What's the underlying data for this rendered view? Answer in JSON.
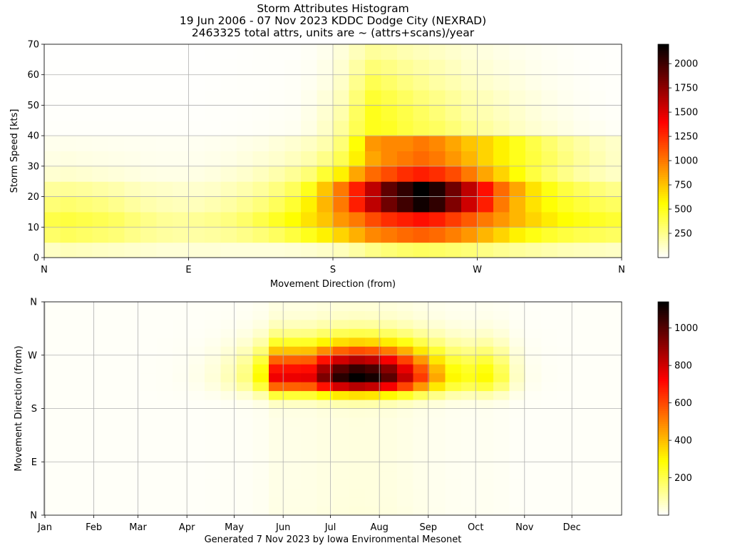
{
  "header": {
    "title": "Storm Attributes Histogram",
    "subtitle": "19 Jun 2006 - 07 Nov 2023 KDDC Dodge City (NEXRAD)",
    "note": "2463325 total attrs, units are ~ (attrs+scans)/year"
  },
  "footer": {
    "text": "Generated 7 Nov 2023 by Iowa Environmental Mesonet"
  },
  "chart_data": [
    {
      "type": "heatmap",
      "xlabel": "Movement Direction (from)",
      "ylabel": "Storm Speed [kts]",
      "x_ticks": [
        "N",
        "E",
        "S",
        "W",
        "N"
      ],
      "x_range": [
        0,
        360
      ],
      "y_ticks": [
        0,
        10,
        20,
        30,
        40,
        50,
        60,
        70
      ],
      "ylim": [
        0,
        70
      ],
      "bins": {
        "x_bins": 36,
        "x_step_deg": 10,
        "y_bins": 14,
        "y_step_kts": 5
      },
      "colorbar": {
        "ticks": [
          250,
          500,
          750,
          1000,
          1250,
          1500,
          1750,
          2000
        ],
        "min": 0,
        "max": 2200,
        "colormap": "hot_r"
      },
      "grid": true,
      "values": [
        [
          130,
          150,
          140,
          130,
          120,
          110,
          100,
          90,
          90,
          90,
          90,
          80,
          80,
          80,
          80,
          90,
          100,
          120,
          150,
          200,
          260,
          300,
          330,
          350,
          340,
          320,
          300,
          270,
          240,
          220,
          200,
          180,
          160,
          150,
          140,
          130
        ],
        [
          330,
          360,
          340,
          320,
          300,
          260,
          230,
          210,
          200,
          200,
          210,
          230,
          260,
          300,
          350,
          420,
          500,
          600,
          700,
          820,
          950,
          1000,
          1050,
          1080,
          1050,
          980,
          900,
          800,
          700,
          600,
          520,
          460,
          420,
          390,
          370,
          350
        ],
        [
          400,
          420,
          400,
          380,
          350,
          300,
          260,
          230,
          220,
          230,
          250,
          280,
          330,
          400,
          480,
          560,
          650,
          750,
          900,
          1000,
          1150,
          1250,
          1300,
          1350,
          1300,
          1200,
          1100,
          1000,
          900,
          800,
          700,
          620,
          560,
          520,
          480,
          450
        ],
        [
          300,
          320,
          300,
          280,
          250,
          210,
          180,
          160,
          150,
          150,
          170,
          200,
          240,
          290,
          360,
          450,
          600,
          800,
          1000,
          1300,
          1600,
          1850,
          2000,
          2150,
          2050,
          1800,
          1550,
          1300,
          1000,
          800,
          650,
          550,
          480,
          430,
          380,
          350
        ],
        [
          220,
          230,
          220,
          200,
          180,
          150,
          130,
          120,
          110,
          110,
          120,
          150,
          180,
          220,
          280,
          360,
          500,
          750,
          1000,
          1300,
          1600,
          1900,
          2050,
          2200,
          2100,
          1850,
          1600,
          1350,
          1050,
          850,
          650,
          520,
          420,
          360,
          300,
          260
        ],
        [
          100,
          110,
          100,
          90,
          80,
          70,
          60,
          55,
          55,
          60,
          70,
          90,
          110,
          140,
          180,
          230,
          300,
          450,
          600,
          850,
          1050,
          1150,
          1250,
          1300,
          1250,
          1150,
          1000,
          850,
          700,
          550,
          420,
          330,
          260,
          200,
          160,
          130
        ],
        [
          60,
          65,
          60,
          55,
          50,
          45,
          40,
          38,
          38,
          40,
          45,
          55,
          70,
          90,
          110,
          140,
          180,
          260,
          380,
          600,
          850,
          950,
          1000,
          1050,
          1000,
          900,
          800,
          700,
          600,
          500,
          420,
          350,
          280,
          220,
          170,
          130
        ],
        [
          40,
          42,
          40,
          38,
          35,
          32,
          30,
          28,
          28,
          30,
          35,
          40,
          50,
          60,
          80,
          100,
          130,
          180,
          300,
          550,
          900,
          950,
          950,
          1000,
          950,
          850,
          750,
          700,
          600,
          500,
          400,
          320,
          250,
          200,
          150,
          120
        ],
        [
          10,
          10,
          10,
          10,
          10,
          10,
          10,
          10,
          10,
          10,
          12,
          14,
          16,
          20,
          25,
          30,
          60,
          120,
          220,
          380,
          500,
          480,
          420,
          380,
          350,
          300,
          250,
          210,
          170,
          130,
          100,
          80,
          60,
          40,
          30,
          20
        ],
        [
          8,
          8,
          8,
          8,
          8,
          8,
          8,
          8,
          8,
          8,
          10,
          12,
          14,
          16,
          20,
          25,
          50,
          100,
          180,
          350,
          500,
          450,
          400,
          350,
          300,
          250,
          200,
          170,
          140,
          110,
          80,
          60,
          45,
          30,
          20,
          15
        ],
        [
          6,
          6,
          6,
          6,
          6,
          6,
          6,
          6,
          6,
          6,
          8,
          10,
          12,
          14,
          16,
          20,
          40,
          80,
          150,
          300,
          450,
          400,
          350,
          300,
          260,
          220,
          180,
          150,
          120,
          90,
          70,
          50,
          35,
          25,
          18,
          12
        ],
        [
          5,
          5,
          5,
          5,
          5,
          5,
          5,
          5,
          5,
          5,
          6,
          8,
          10,
          12,
          14,
          18,
          30,
          60,
          120,
          250,
          380,
          330,
          280,
          240,
          200,
          170,
          140,
          110,
          90,
          70,
          50,
          38,
          28,
          20,
          14,
          10
        ],
        [
          4,
          4,
          4,
          4,
          4,
          4,
          4,
          4,
          4,
          4,
          5,
          6,
          8,
          10,
          12,
          15,
          25,
          50,
          100,
          200,
          300,
          270,
          230,
          200,
          170,
          140,
          110,
          90,
          70,
          55,
          40,
          30,
          22,
          16,
          12,
          8
        ],
        [
          3,
          3,
          3,
          3,
          3,
          3,
          3,
          3,
          3,
          3,
          4,
          5,
          6,
          8,
          10,
          12,
          20,
          40,
          80,
          150,
          220,
          200,
          170,
          150,
          130,
          110,
          90,
          70,
          55,
          42,
          32,
          24,
          18,
          12,
          9,
          6
        ]
      ]
    },
    {
      "type": "heatmap",
      "xlabel": "",
      "ylabel": "Movement Direction (from)",
      "x_ticks": [
        "Jan",
        "Feb",
        "Mar",
        "Apr",
        "May",
        "Jun",
        "Jul",
        "Aug",
        "Sep",
        "Oct",
        "Nov",
        "Dec"
      ],
      "x_tick_doy": [
        1,
        32,
        60,
        91,
        121,
        152,
        182,
        213,
        244,
        274,
        305,
        335
      ],
      "x_range": [
        0,
        366
      ],
      "y_ticks": [
        "N",
        "E",
        "S",
        "W",
        "N"
      ],
      "y_range_deg": [
        0,
        360
      ],
      "bins": {
        "x_bins": 36,
        "x_step_days": 10.17,
        "y_bins": 24,
        "y_step_deg": 15
      },
      "colorbar": {
        "ticks": [
          200,
          400,
          600,
          800,
          1000
        ],
        "min": 0,
        "max": 1140,
        "colormap": "hot_r"
      },
      "grid": true
    }
  ]
}
